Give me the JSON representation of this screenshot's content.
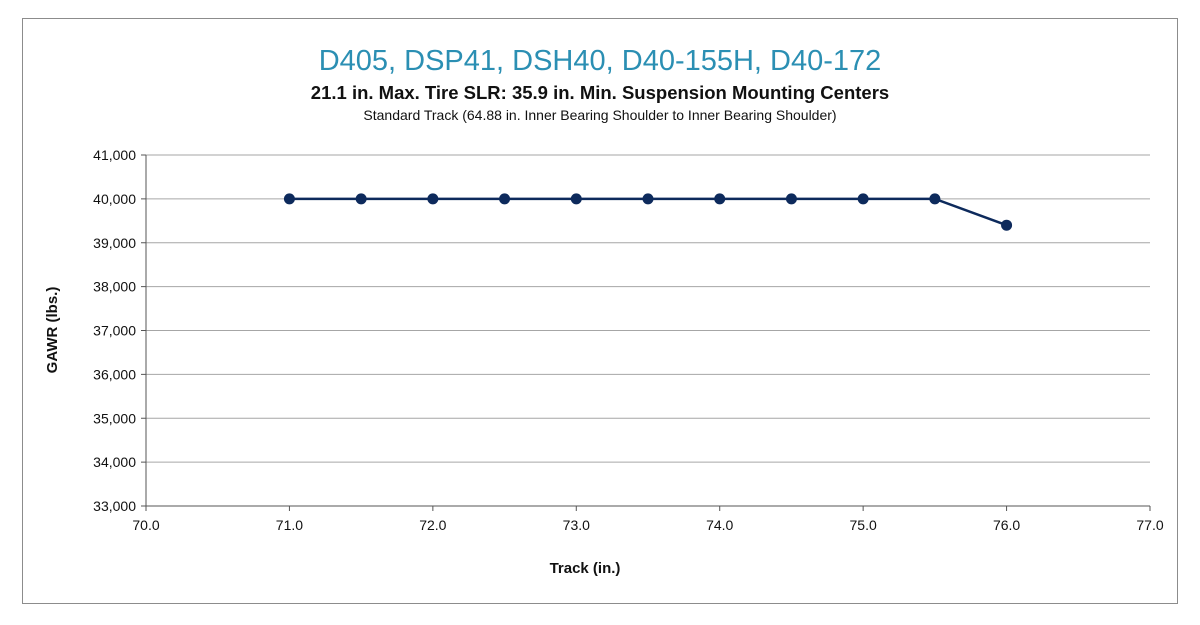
{
  "chart_data": {
    "type": "line",
    "title": "D405, DSP41, DSH40, D40-155H, D40-172",
    "subtitle": "21.1 in. Max. Tire SLR: 35.9 in. Min. Suspension Mounting Centers",
    "subsubtitle": "Standard Track  (64.88 in. Inner Bearing Shoulder to Inner Bearing Shoulder)",
    "xlabel": "Track (in.)",
    "ylabel": "GAWR (lbs.)",
    "xlim": [
      70.0,
      77.0
    ],
    "ylim": [
      33000,
      41000
    ],
    "x_ticks": [
      "70.0",
      "71.0",
      "72.0",
      "73.0",
      "74.0",
      "75.0",
      "76.0",
      "77.0"
    ],
    "y_ticks": [
      "33,000",
      "34,000",
      "35,000",
      "36,000",
      "37,000",
      "38,000",
      "39,000",
      "40,000",
      "41,000"
    ],
    "grid": "horizontal",
    "line_color": "#0d2a5c",
    "series": [
      {
        "x": [
          71.0,
          71.5,
          72.0,
          72.5,
          73.0,
          73.5,
          74.0,
          74.5,
          75.0,
          75.5,
          76.0
        ],
        "values": [
          40000,
          40000,
          40000,
          40000,
          40000,
          40000,
          40000,
          40000,
          40000,
          40000,
          39400
        ]
      }
    ]
  }
}
